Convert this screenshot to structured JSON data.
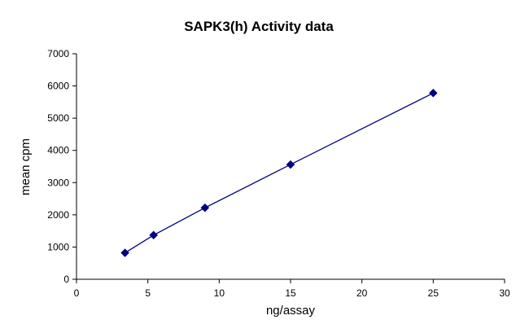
{
  "chart_data": {
    "type": "line",
    "title": "SAPK3(h) Activity data",
    "xlabel": "ng/assay",
    "ylabel": "mean cpm",
    "xlim": [
      0,
      30
    ],
    "ylim": [
      0,
      7000
    ],
    "xticks": [
      0,
      5,
      10,
      15,
      20,
      25,
      30
    ],
    "yticks": [
      0,
      1000,
      2000,
      3000,
      4000,
      5000,
      6000,
      7000
    ],
    "grid": false,
    "legend": "none",
    "series": [
      {
        "color": "#000080",
        "marker": "diamond",
        "points": [
          {
            "x": 3.4,
            "y": 820
          },
          {
            "x": 5.4,
            "y": 1370
          },
          {
            "x": 9,
            "y": 2220
          },
          {
            "x": 15,
            "y": 3560
          },
          {
            "x": 25,
            "y": 5780
          }
        ]
      }
    ]
  }
}
